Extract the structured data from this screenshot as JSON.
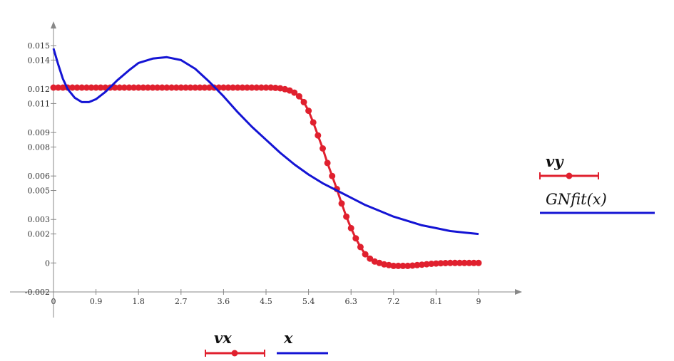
{
  "chart_data": {
    "type": "line",
    "xlim": [
      0,
      9
    ],
    "ylim": [
      -0.002,
      0.016
    ],
    "x_ticks": [
      "0",
      "0.9",
      "1.8",
      "2.7",
      "3.6",
      "4.5",
      "5.4",
      "6.3",
      "7.2",
      "8.1",
      "9"
    ],
    "y_ticks": [
      "0.015",
      "0.014",
      "0.012",
      "0.011",
      "0.009",
      "0.008",
      "0.006",
      "0.005",
      "0.003",
      "0.002",
      "0",
      "-0.002"
    ],
    "y_tick_values": [
      0.015,
      0.014,
      0.012,
      0.011,
      0.009,
      0.008,
      0.006,
      0.005,
      0.003,
      0.002,
      0,
      -0.002
    ],
    "legend_x": [
      "vx",
      "x"
    ],
    "legend_y": [
      "vy",
      "GNfit(x)"
    ],
    "grid": false,
    "colors": {
      "data": "#e0202e",
      "fit": "#1414d4",
      "axis": "#888888"
    },
    "series": [
      {
        "name": "vy",
        "style": "line-with-markers",
        "x": [
          0,
          0.1,
          0.2,
          0.3,
          0.4,
          0.5,
          0.6,
          0.7,
          0.8,
          0.9,
          1.0,
          1.1,
          1.2,
          1.3,
          1.4,
          1.5,
          1.6,
          1.7,
          1.8,
          1.9,
          2.0,
          2.1,
          2.2,
          2.3,
          2.4,
          2.5,
          2.6,
          2.7,
          2.8,
          2.9,
          3.0,
          3.1,
          3.2,
          3.3,
          3.4,
          3.5,
          3.6,
          3.7,
          3.8,
          3.9,
          4.0,
          4.1,
          4.2,
          4.3,
          4.4,
          4.5,
          4.6,
          4.7,
          4.8,
          4.9,
          5.0,
          5.1,
          5.2,
          5.3,
          5.4,
          5.5,
          5.6,
          5.7,
          5.8,
          5.9,
          6.0,
          6.1,
          6.2,
          6.3,
          6.4,
          6.5,
          6.6,
          6.7,
          6.8,
          6.9,
          7.0,
          7.1,
          7.2,
          7.3,
          7.4,
          7.5,
          7.6,
          7.7,
          7.8,
          7.9,
          8.0,
          8.1,
          8.2,
          8.3,
          8.4,
          8.5,
          8.6,
          8.7,
          8.8,
          8.9,
          9.0
        ],
        "y": [
          0.0121,
          0.0121,
          0.0121,
          0.0121,
          0.0121,
          0.0121,
          0.0121,
          0.0121,
          0.0121,
          0.0121,
          0.0121,
          0.0121,
          0.0121,
          0.0121,
          0.0121,
          0.0121,
          0.0121,
          0.0121,
          0.0121,
          0.0121,
          0.0121,
          0.0121,
          0.0121,
          0.0121,
          0.0121,
          0.0121,
          0.0121,
          0.0121,
          0.0121,
          0.0121,
          0.0121,
          0.0121,
          0.0121,
          0.0121,
          0.0121,
          0.0121,
          0.0121,
          0.0121,
          0.0121,
          0.0121,
          0.0121,
          0.0121,
          0.0121,
          0.0121,
          0.0121,
          0.0121,
          0.0121,
          0.01208,
          0.01205,
          0.01199,
          0.0119,
          0.01175,
          0.0115,
          0.0111,
          0.0105,
          0.0097,
          0.0088,
          0.0079,
          0.0069,
          0.006,
          0.0051,
          0.0041,
          0.0032,
          0.0024,
          0.0017,
          0.0011,
          0.0006,
          0.0003,
          0.0001,
          0.0,
          -0.0001,
          -0.00015,
          -0.0002,
          -0.0002,
          -0.0002,
          -0.0002,
          -0.00018,
          -0.00015,
          -0.00012,
          -9e-05,
          -6e-05,
          -4e-05,
          -2e-05,
          -1e-05,
          0.0,
          0.0,
          0.0,
          0.0,
          0.0,
          0.0,
          0.0
        ]
      },
      {
        "name": "GNfit(x)",
        "style": "line",
        "x": [
          0,
          0.1,
          0.2,
          0.3,
          0.45,
          0.6,
          0.75,
          0.9,
          1.1,
          1.35,
          1.6,
          1.8,
          2.1,
          2.4,
          2.7,
          3.0,
          3.3,
          3.6,
          3.9,
          4.2,
          4.5,
          4.8,
          5.1,
          5.4,
          5.7,
          6.0,
          6.3,
          6.6,
          6.9,
          7.2,
          7.5,
          7.8,
          8.1,
          8.4,
          8.7,
          9.0
        ],
        "y": [
          0.0148,
          0.0137,
          0.0127,
          0.012,
          0.0114,
          0.0111,
          0.0111,
          0.0113,
          0.0118,
          0.0126,
          0.0133,
          0.0138,
          0.0141,
          0.0142,
          0.014,
          0.0134,
          0.0125,
          0.0115,
          0.0104,
          0.0094,
          0.0085,
          0.0076,
          0.0068,
          0.0061,
          0.0055,
          0.005,
          0.0045,
          0.004,
          0.0036,
          0.0032,
          0.0029,
          0.0026,
          0.0024,
          0.0022,
          0.0021,
          0.002
        ]
      }
    ]
  }
}
